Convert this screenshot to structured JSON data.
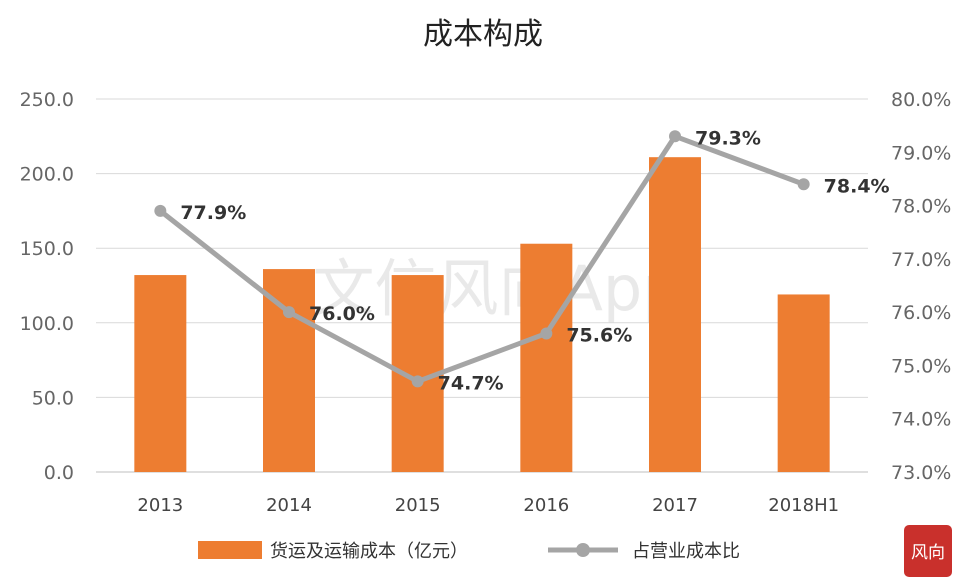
{
  "chart_data": {
    "type": "bar",
    "title": "成本构成",
    "categories": [
      "2013",
      "2014",
      "2015",
      "2016",
      "2017",
      "2018H1"
    ],
    "series": [
      {
        "name": "货运及运输成本（亿元）",
        "type": "bar",
        "axis": "left",
        "color": "#ed7d31",
        "values": [
          132,
          136,
          132,
          153,
          211,
          119
        ]
      },
      {
        "name": "占营业成本比",
        "type": "line",
        "axis": "right",
        "color": "#a5a5a5",
        "values": [
          77.9,
          76.0,
          74.7,
          75.6,
          79.3,
          78.4
        ],
        "labels": [
          "77.9%",
          "76.0%",
          "74.7%",
          "75.6%",
          "79.3%",
          "78.4%"
        ]
      }
    ],
    "y_left": {
      "range": [
        0,
        250
      ],
      "ticks": [
        "0.0",
        "50.0",
        "100.0",
        "150.0",
        "200.0",
        "250.0"
      ]
    },
    "y_right": {
      "range": [
        73,
        80
      ],
      "ticks": [
        "73.0%",
        "74.0%",
        "75.0%",
        "76.0%",
        "77.0%",
        "78.0%",
        "79.0%",
        "80.0%"
      ]
    },
    "grid": true,
    "legend": "bottom"
  },
  "watermark": "文信风向App",
  "logo_text": "风向"
}
